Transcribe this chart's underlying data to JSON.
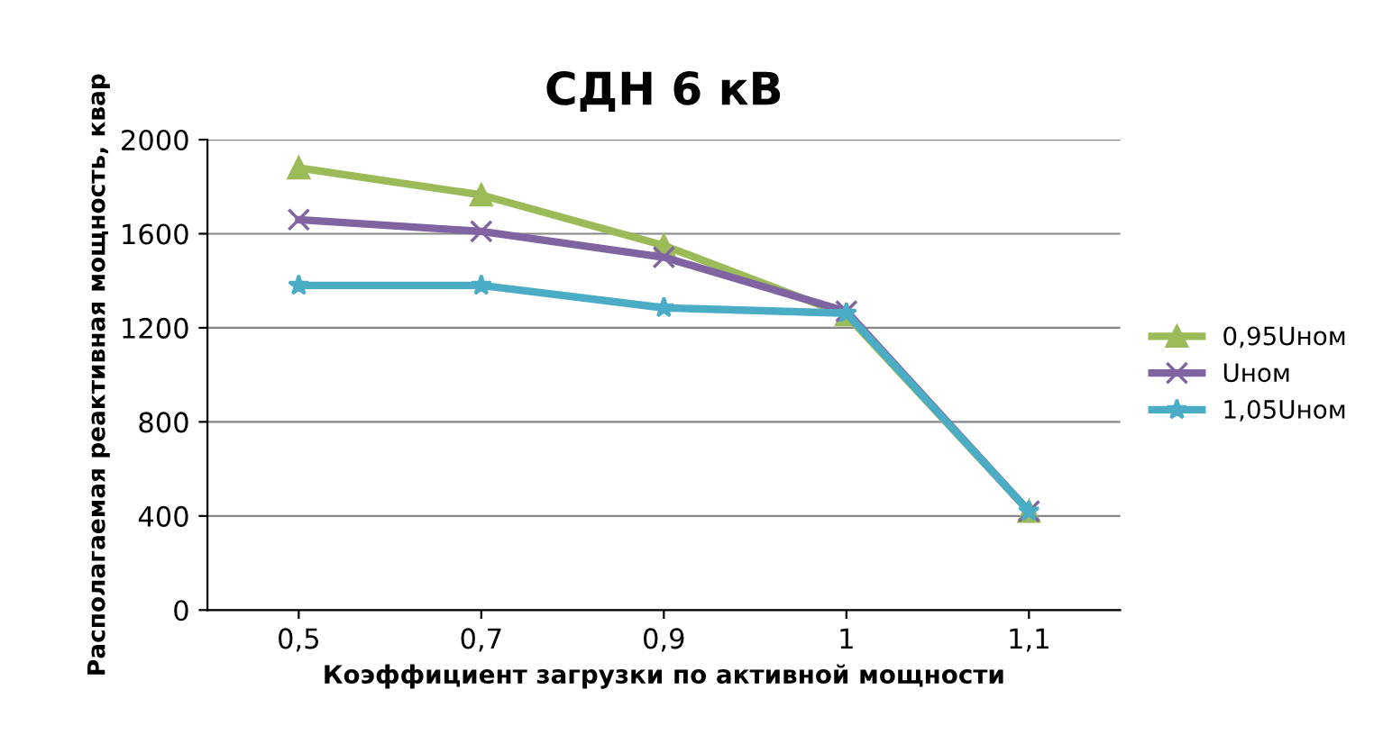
{
  "chart_data": {
    "type": "line",
    "title": "СДН 6 кВ",
    "xlabel": "Коэффициент загрузки по активной мощности",
    "ylabel": "Располагаемая реактивная мощность, квар",
    "categories": [
      "0,5",
      "0,7",
      "0,9",
      "1",
      "1,1"
    ],
    "series": [
      {
        "name": "0,95Uном",
        "color": "#9bbb59",
        "marker": "triangle",
        "values": [
          1880,
          1765,
          1550,
          1255,
          420
        ]
      },
      {
        "name": "Uном",
        "color": "#8064a2",
        "marker": "cross",
        "values": [
          1660,
          1610,
          1500,
          1270,
          420
        ]
      },
      {
        "name": "1,05Uном",
        "color": "#4bacc6",
        "marker": "star",
        "values": [
          1380,
          1380,
          1285,
          1262,
          420
        ]
      }
    ],
    "ylim": [
      0,
      2000
    ],
    "yticks": [
      0,
      400,
      800,
      1200,
      1600,
      2000
    ],
    "grid": "y",
    "legend": "right"
  }
}
